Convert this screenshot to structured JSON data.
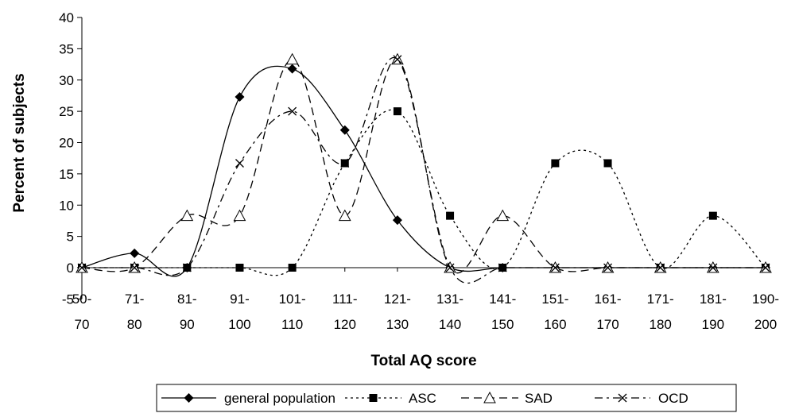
{
  "chart_data": {
    "type": "line",
    "title": "",
    "xlabel": "Total AQ score",
    "ylabel": "Percent of subjects",
    "ylim": [
      -5,
      40
    ],
    "yticks": [
      -5,
      0,
      5,
      10,
      15,
      20,
      25,
      30,
      35,
      40
    ],
    "categories": [
      "50-70",
      "71-80",
      "81-90",
      "91-100",
      "101-110",
      "111-120",
      "121-130",
      "131-140",
      "141-150",
      "151-160",
      "161-170",
      "171-180",
      "181-190",
      "190-200"
    ],
    "category_lines": [
      [
        "50-",
        "70"
      ],
      [
        "71-",
        "80"
      ],
      [
        "81-",
        "90"
      ],
      [
        "91-",
        "100"
      ],
      [
        "101-",
        "110"
      ],
      [
        "111-",
        "120"
      ],
      [
        "121-",
        "130"
      ],
      [
        "131-",
        "140"
      ],
      [
        "141-",
        "150"
      ],
      [
        "151-",
        "160"
      ],
      [
        "161-",
        "170"
      ],
      [
        "171-",
        "180"
      ],
      [
        "181-",
        "190"
      ],
      [
        "190-",
        "200"
      ]
    ],
    "legend_position": "bottom",
    "grid": false,
    "series": [
      {
        "name": "general population",
        "marker": "diamond",
        "dash": "solid",
        "values": [
          0,
          2.3,
          0,
          27.3,
          31.8,
          22.0,
          7.6,
          0,
          0,
          0,
          0,
          0,
          0,
          0
        ]
      },
      {
        "name": "ASC",
        "marker": "square",
        "dash": "dotted",
        "values": [
          0,
          0,
          0,
          0,
          0,
          16.7,
          25.0,
          8.3,
          0,
          16.7,
          16.7,
          0,
          8.3,
          0
        ]
      },
      {
        "name": "SAD",
        "marker": "triangle",
        "dash": "dashed",
        "values": [
          0,
          0,
          8.3,
          8.3,
          33.3,
          8.3,
          33.3,
          0,
          8.3,
          0,
          0,
          0,
          0,
          0
        ]
      },
      {
        "name": "OCD",
        "marker": "cross",
        "dash": "dashdot",
        "values": [
          0,
          0,
          0,
          16.7,
          25.0,
          16.7,
          33.3,
          0,
          0,
          0,
          0,
          0,
          0,
          0
        ]
      }
    ]
  }
}
